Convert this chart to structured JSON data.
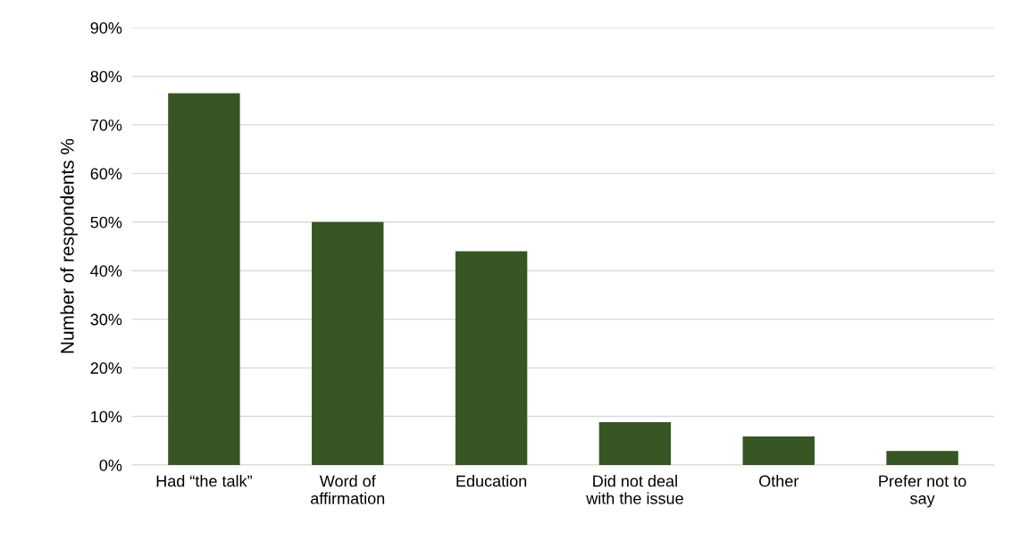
{
  "chart_data": {
    "type": "bar",
    "ylabel": "Number of respondents %",
    "categories": [
      "Had “the talk”",
      "Word of\naffirmation",
      "Education",
      "Did not deal\nwith the issue",
      "Other",
      "Prefer not to\nsay"
    ],
    "values": [
      76.5,
      50,
      44,
      8.8,
      5.9,
      2.9
    ],
    "color": "#375623",
    "ylim": [
      0,
      90
    ],
    "yticks": [
      {
        "value": 0,
        "label": "0%"
      },
      {
        "value": 10,
        "label": "10%"
      },
      {
        "value": 20,
        "label": "20%"
      },
      {
        "value": 30,
        "label": "30%"
      },
      {
        "value": 40,
        "label": "40%"
      },
      {
        "value": 50,
        "label": "50%"
      },
      {
        "value": 60,
        "label": "60%"
      },
      {
        "value": 70,
        "label": "70%"
      },
      {
        "value": 80,
        "label": "80%"
      },
      {
        "value": 90,
        "label": "90%"
      }
    ],
    "grid": "y"
  }
}
